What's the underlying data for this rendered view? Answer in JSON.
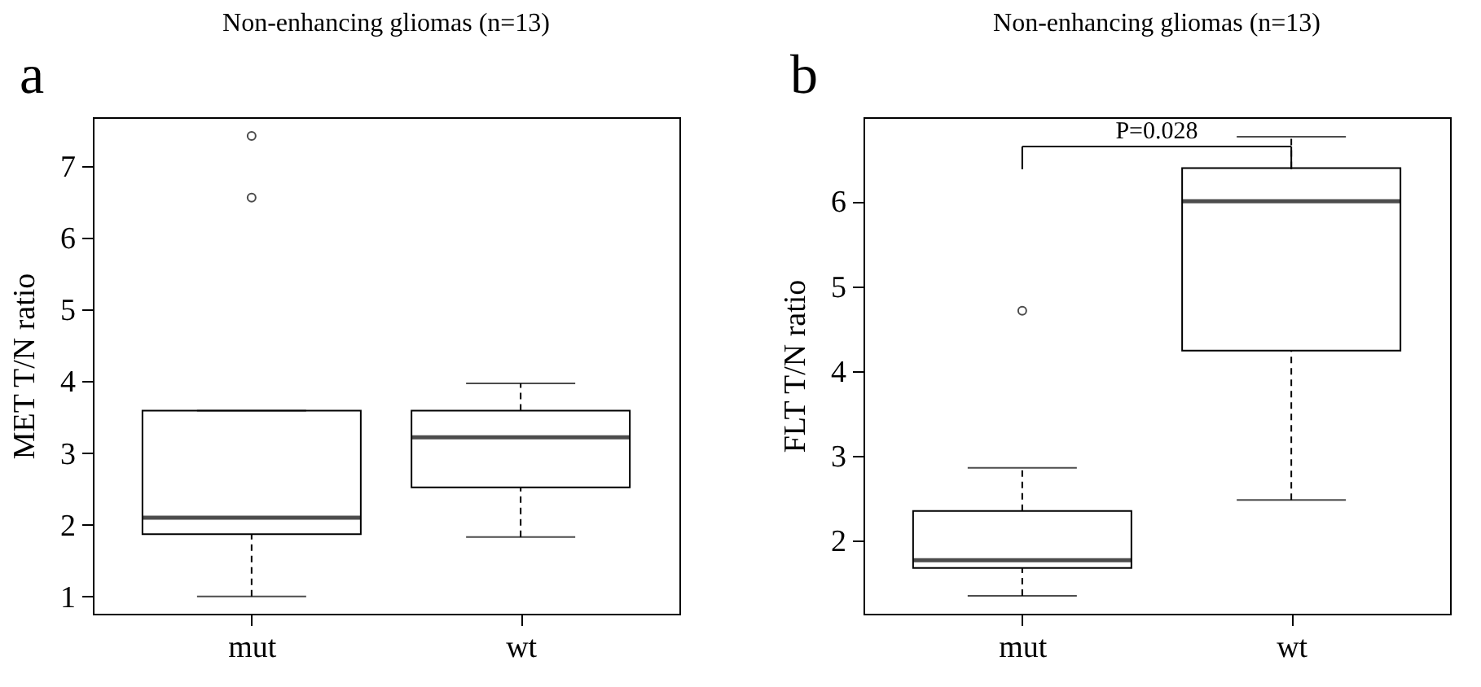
{
  "chart_data": [
    {
      "type": "box",
      "title": "Non-enhancing gliomas (n=13)",
      "ylabel": "MET T/N ratio",
      "categories": [
        "mut",
        "wt"
      ],
      "boxes": [
        {
          "low": 1.0,
          "q1": 1.87,
          "median": 2.1,
          "q3": 3.59,
          "high": 3.59,
          "outliers": [
            7.42,
            6.56
          ]
        },
        {
          "low": 1.83,
          "q1": 2.52,
          "median": 3.22,
          "q3": 3.59,
          "high": 3.97
        }
      ],
      "ylim": [
        0.76,
        7.68
      ],
      "yticks": [
        1,
        2,
        3,
        4,
        5,
        6,
        7
      ],
      "grid": false,
      "annotations": [
        "a"
      ]
    },
    {
      "type": "box",
      "title": "Non-enhancing gliomas (n=13)",
      "ylabel": "FLT T/N ratio",
      "categories": [
        "mut",
        "wt"
      ],
      "boxes": [
        {
          "low": 1.35,
          "q1": 1.68,
          "median": 1.77,
          "q3": 2.35,
          "high": 2.86,
          "outliers": [
            4.71
          ]
        },
        {
          "low": 2.48,
          "q1": 4.24,
          "median": 6.0,
          "q3": 6.39,
          "high": 6.76
        }
      ],
      "ylim": [
        1.14,
        6.99
      ],
      "yticks": [
        2,
        3,
        4,
        5,
        6
      ],
      "grid": false,
      "annotations": [
        "b",
        "P=0.028"
      ]
    }
  ]
}
